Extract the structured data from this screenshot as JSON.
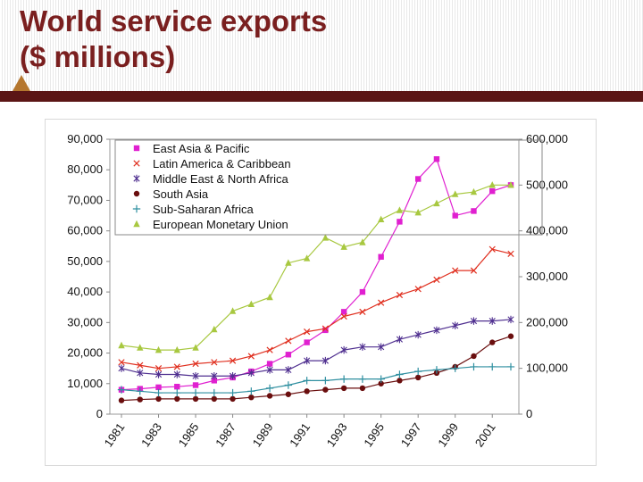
{
  "slide": {
    "title_line1": "World service exports",
    "title_line2": "($ millions)"
  },
  "chart_data": {
    "type": "line",
    "title": "World service exports ($ millions)",
    "x": [
      "1981",
      "1982",
      "1983",
      "1984",
      "1985",
      "1986",
      "1987",
      "1988",
      "1989",
      "1990",
      "1991",
      "1992",
      "1993",
      "1994",
      "1995",
      "1996",
      "1997",
      "1998",
      "1999",
      "2000",
      "2001",
      "2002"
    ],
    "x_tick_labels": [
      "1981",
      "1983",
      "1985",
      "1987",
      "1989",
      "1991",
      "1993",
      "1995",
      "1997",
      "1999",
      "2001"
    ],
    "y_left": {
      "ticks": [
        0,
        10000,
        20000,
        30000,
        40000,
        50000,
        60000,
        70000,
        80000,
        90000
      ],
      "tick_labels": [
        "0",
        "10,000",
        "20,000",
        "30,000",
        "40,000",
        "50,000",
        "60,000",
        "70,000",
        "80,000",
        "90,000"
      ],
      "ylim": [
        0,
        90000
      ]
    },
    "y_right": {
      "ticks": [
        0,
        100000,
        200000,
        300000,
        400000,
        500000,
        600000
      ],
      "tick_labels": [
        "0",
        "100,000",
        "200,000",
        "300,000",
        "400,000",
        "500,000",
        "600,000"
      ],
      "ylim": [
        0,
        600000
      ],
      "applies_to": "European Monetary Union"
    },
    "legend_position": "top-left",
    "series": [
      {
        "name": "East Asia & Pacific",
        "axis": "left",
        "color": "#e020d0",
        "marker": "square",
        "values": [
          8000,
          8300,
          8800,
          9000,
          9500,
          11000,
          12000,
          14000,
          16500,
          19500,
          23500,
          27500,
          33500,
          40000,
          51500,
          63000,
          77000,
          83500,
          65000,
          66500,
          73000,
          75000
        ]
      },
      {
        "name": "Latin America & Caribbean",
        "axis": "left",
        "color": "#e03020",
        "marker": "x",
        "values": [
          17000,
          16000,
          15000,
          15500,
          16500,
          17000,
          17500,
          19000,
          21000,
          24000,
          27000,
          28000,
          32000,
          33500,
          36500,
          39000,
          41000,
          44000,
          47000,
          47000,
          54000,
          52500
        ]
      },
      {
        "name": "Middle East & North Africa",
        "axis": "left",
        "color": "#503090",
        "marker": "star",
        "values": [
          15000,
          13500,
          13000,
          13000,
          12500,
          12500,
          12500,
          13500,
          14500,
          14500,
          17500,
          17500,
          21000,
          22000,
          22000,
          24500,
          26000,
          27500,
          29000,
          30500,
          30500,
          31000
        ]
      },
      {
        "name": "South Asia",
        "axis": "left",
        "color": "#6a0e0e",
        "marker": "circle",
        "values": [
          4500,
          4800,
          5000,
          5000,
          5000,
          5000,
          5000,
          5500,
          6000,
          6500,
          7500,
          8000,
          8500,
          8500,
          10000,
          11000,
          12000,
          13500,
          15500,
          19000,
          23500,
          25500
        ]
      },
      {
        "name": "Sub-Saharan Africa",
        "axis": "left",
        "color": "#2f8fa0",
        "marker": "plus",
        "values": [
          8000,
          7500,
          7000,
          7000,
          7000,
          7000,
          7000,
          7500,
          8500,
          9500,
          11000,
          11000,
          11500,
          11500,
          11500,
          13000,
          14000,
          14500,
          15000,
          15500,
          15500,
          15500
        ]
      },
      {
        "name": "European Monetary Union",
        "axis": "right",
        "color": "#a8c840",
        "marker": "triangle",
        "values": [
          150000,
          145000,
          140000,
          140000,
          145000,
          185000,
          225000,
          240000,
          255000,
          330000,
          340000,
          385000,
          365000,
          375000,
          425000,
          445000,
          440000,
          460000,
          480000,
          485000,
          500000,
          500000
        ]
      }
    ]
  }
}
